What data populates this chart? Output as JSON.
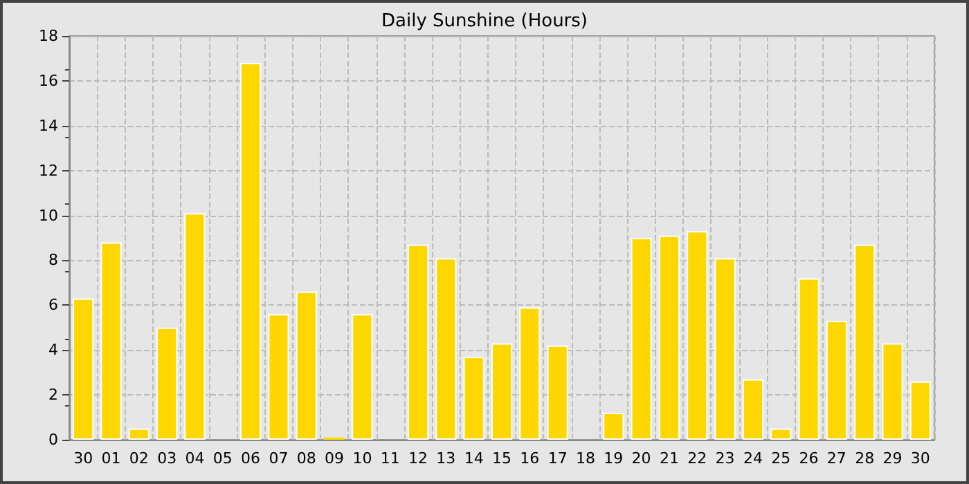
{
  "chart_data": {
    "type": "bar",
    "title": "Daily Sunshine (Hours)",
    "categories": [
      "30",
      "01",
      "02",
      "03",
      "04",
      "05",
      "06",
      "07",
      "08",
      "09",
      "10",
      "11",
      "12",
      "13",
      "14",
      "15",
      "16",
      "17",
      "18",
      "19",
      "20",
      "21",
      "22",
      "23",
      "24",
      "25",
      "26",
      "27",
      "28",
      "29",
      "30"
    ],
    "values": [
      6.3,
      8.8,
      0.5,
      5.0,
      10.1,
      0,
      16.8,
      5.6,
      6.6,
      0.1,
      5.6,
      0,
      8.7,
      8.1,
      3.7,
      4.3,
      5.9,
      4.2,
      0,
      1.2,
      9.0,
      9.1,
      9.3,
      8.1,
      2.7,
      0.5,
      7.2,
      5.3,
      8.7,
      4.3,
      2.6
    ],
    "color": "#ffd700",
    "ylim": [
      0,
      18
    ],
    "yticks": [
      0,
      2,
      4,
      6,
      8,
      10,
      12,
      14,
      16,
      18
    ],
    "grid": true
  }
}
